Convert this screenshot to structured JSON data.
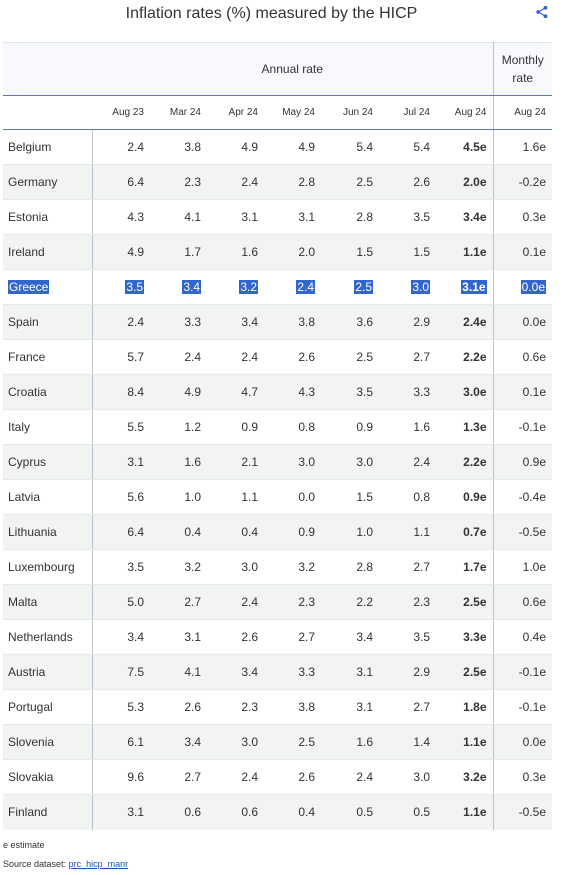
{
  "title": "Inflation rates (%) measured by the HICP",
  "share_icon": "share-icon",
  "header": {
    "annual_label": "Annual rate",
    "monthly_label": "Monthly rate",
    "periods": [
      "Aug 23",
      "Mar 24",
      "Apr 24",
      "May 24",
      "Jun 24",
      "Jul 24",
      "Aug 24"
    ],
    "monthly_period": "Aug 24"
  },
  "rows": [
    {
      "country": "Belgium",
      "values": [
        "2.4",
        "3.8",
        "4.9",
        "4.9",
        "5.4",
        "5.4",
        "4.5e"
      ],
      "monthly": "1.6e"
    },
    {
      "country": "Germany",
      "values": [
        "6.4",
        "2.3",
        "2.4",
        "2.8",
        "2.5",
        "2.6",
        "2.0e"
      ],
      "monthly": "-0.2e"
    },
    {
      "country": "Estonia",
      "values": [
        "4.3",
        "4.1",
        "3.1",
        "3.1",
        "2.8",
        "3.5",
        "3.4e"
      ],
      "monthly": "0.3e"
    },
    {
      "country": "Ireland",
      "values": [
        "4.9",
        "1.7",
        "1.6",
        "2.0",
        "1.5",
        "1.5",
        "1.1e"
      ],
      "monthly": "0.1e"
    },
    {
      "country": "Greece",
      "values": [
        "3.5",
        "3.4",
        "3.2",
        "2.4",
        "2.5",
        "3.0",
        "3.1e"
      ],
      "monthly": "0.0e",
      "selected": true
    },
    {
      "country": "Spain",
      "values": [
        "2.4",
        "3.3",
        "3.4",
        "3.8",
        "3.6",
        "2.9",
        "2.4e"
      ],
      "monthly": "0.0e"
    },
    {
      "country": "France",
      "values": [
        "5.7",
        "2.4",
        "2.4",
        "2.6",
        "2.5",
        "2.7",
        "2.2e"
      ],
      "monthly": "0.6e"
    },
    {
      "country": "Croatia",
      "values": [
        "8.4",
        "4.9",
        "4.7",
        "4.3",
        "3.5",
        "3.3",
        "3.0e"
      ],
      "monthly": "0.1e"
    },
    {
      "country": "Italy",
      "values": [
        "5.5",
        "1.2",
        "0.9",
        "0.8",
        "0.9",
        "1.6",
        "1.3e"
      ],
      "monthly": "-0.1e"
    },
    {
      "country": "Cyprus",
      "values": [
        "3.1",
        "1.6",
        "2.1",
        "3.0",
        "3.0",
        "2.4",
        "2.2e"
      ],
      "monthly": "0.9e"
    },
    {
      "country": "Latvia",
      "values": [
        "5.6",
        "1.0",
        "1.1",
        "0.0",
        "1.5",
        "0.8",
        "0.9e"
      ],
      "monthly": "-0.4e"
    },
    {
      "country": "Lithuania",
      "values": [
        "6.4",
        "0.4",
        "0.4",
        "0.9",
        "1.0",
        "1.1",
        "0.7e"
      ],
      "monthly": "-0.5e"
    },
    {
      "country": "Luxembourg",
      "values": [
        "3.5",
        "3.2",
        "3.0",
        "3.2",
        "2.8",
        "2.7",
        "1.7e"
      ],
      "monthly": "1.0e"
    },
    {
      "country": "Malta",
      "values": [
        "5.0",
        "2.7",
        "2.4",
        "2.3",
        "2.2",
        "2.3",
        "2.5e"
      ],
      "monthly": "0.6e"
    },
    {
      "country": "Netherlands",
      "values": [
        "3.4",
        "3.1",
        "2.6",
        "2.7",
        "3.4",
        "3.5",
        "3.3e"
      ],
      "monthly": "0.4e"
    },
    {
      "country": "Austria",
      "values": [
        "7.5",
        "4.1",
        "3.4",
        "3.3",
        "3.1",
        "2.9",
        "2.5e"
      ],
      "monthly": "-0.1e"
    },
    {
      "country": "Portugal",
      "values": [
        "5.3",
        "2.6",
        "2.3",
        "3.8",
        "3.1",
        "2.7",
        "1.8e"
      ],
      "monthly": "-0.1e"
    },
    {
      "country": "Slovenia",
      "values": [
        "6.1",
        "3.4",
        "3.0",
        "2.5",
        "1.6",
        "1.4",
        "1.1e"
      ],
      "monthly": "0.0e"
    },
    {
      "country": "Slovakia",
      "values": [
        "9.6",
        "2.7",
        "2.4",
        "2.6",
        "2.4",
        "3.0",
        "3.2e"
      ],
      "monthly": "0.3e"
    },
    {
      "country": "Finland",
      "values": [
        "3.1",
        "0.6",
        "0.6",
        "0.4",
        "0.5",
        "0.5",
        "1.1e"
      ],
      "monthly": "-0.5e"
    }
  ],
  "footnote": "e estimate",
  "source_label": "Source dataset:",
  "source_link": "prc_hicp_manr"
}
